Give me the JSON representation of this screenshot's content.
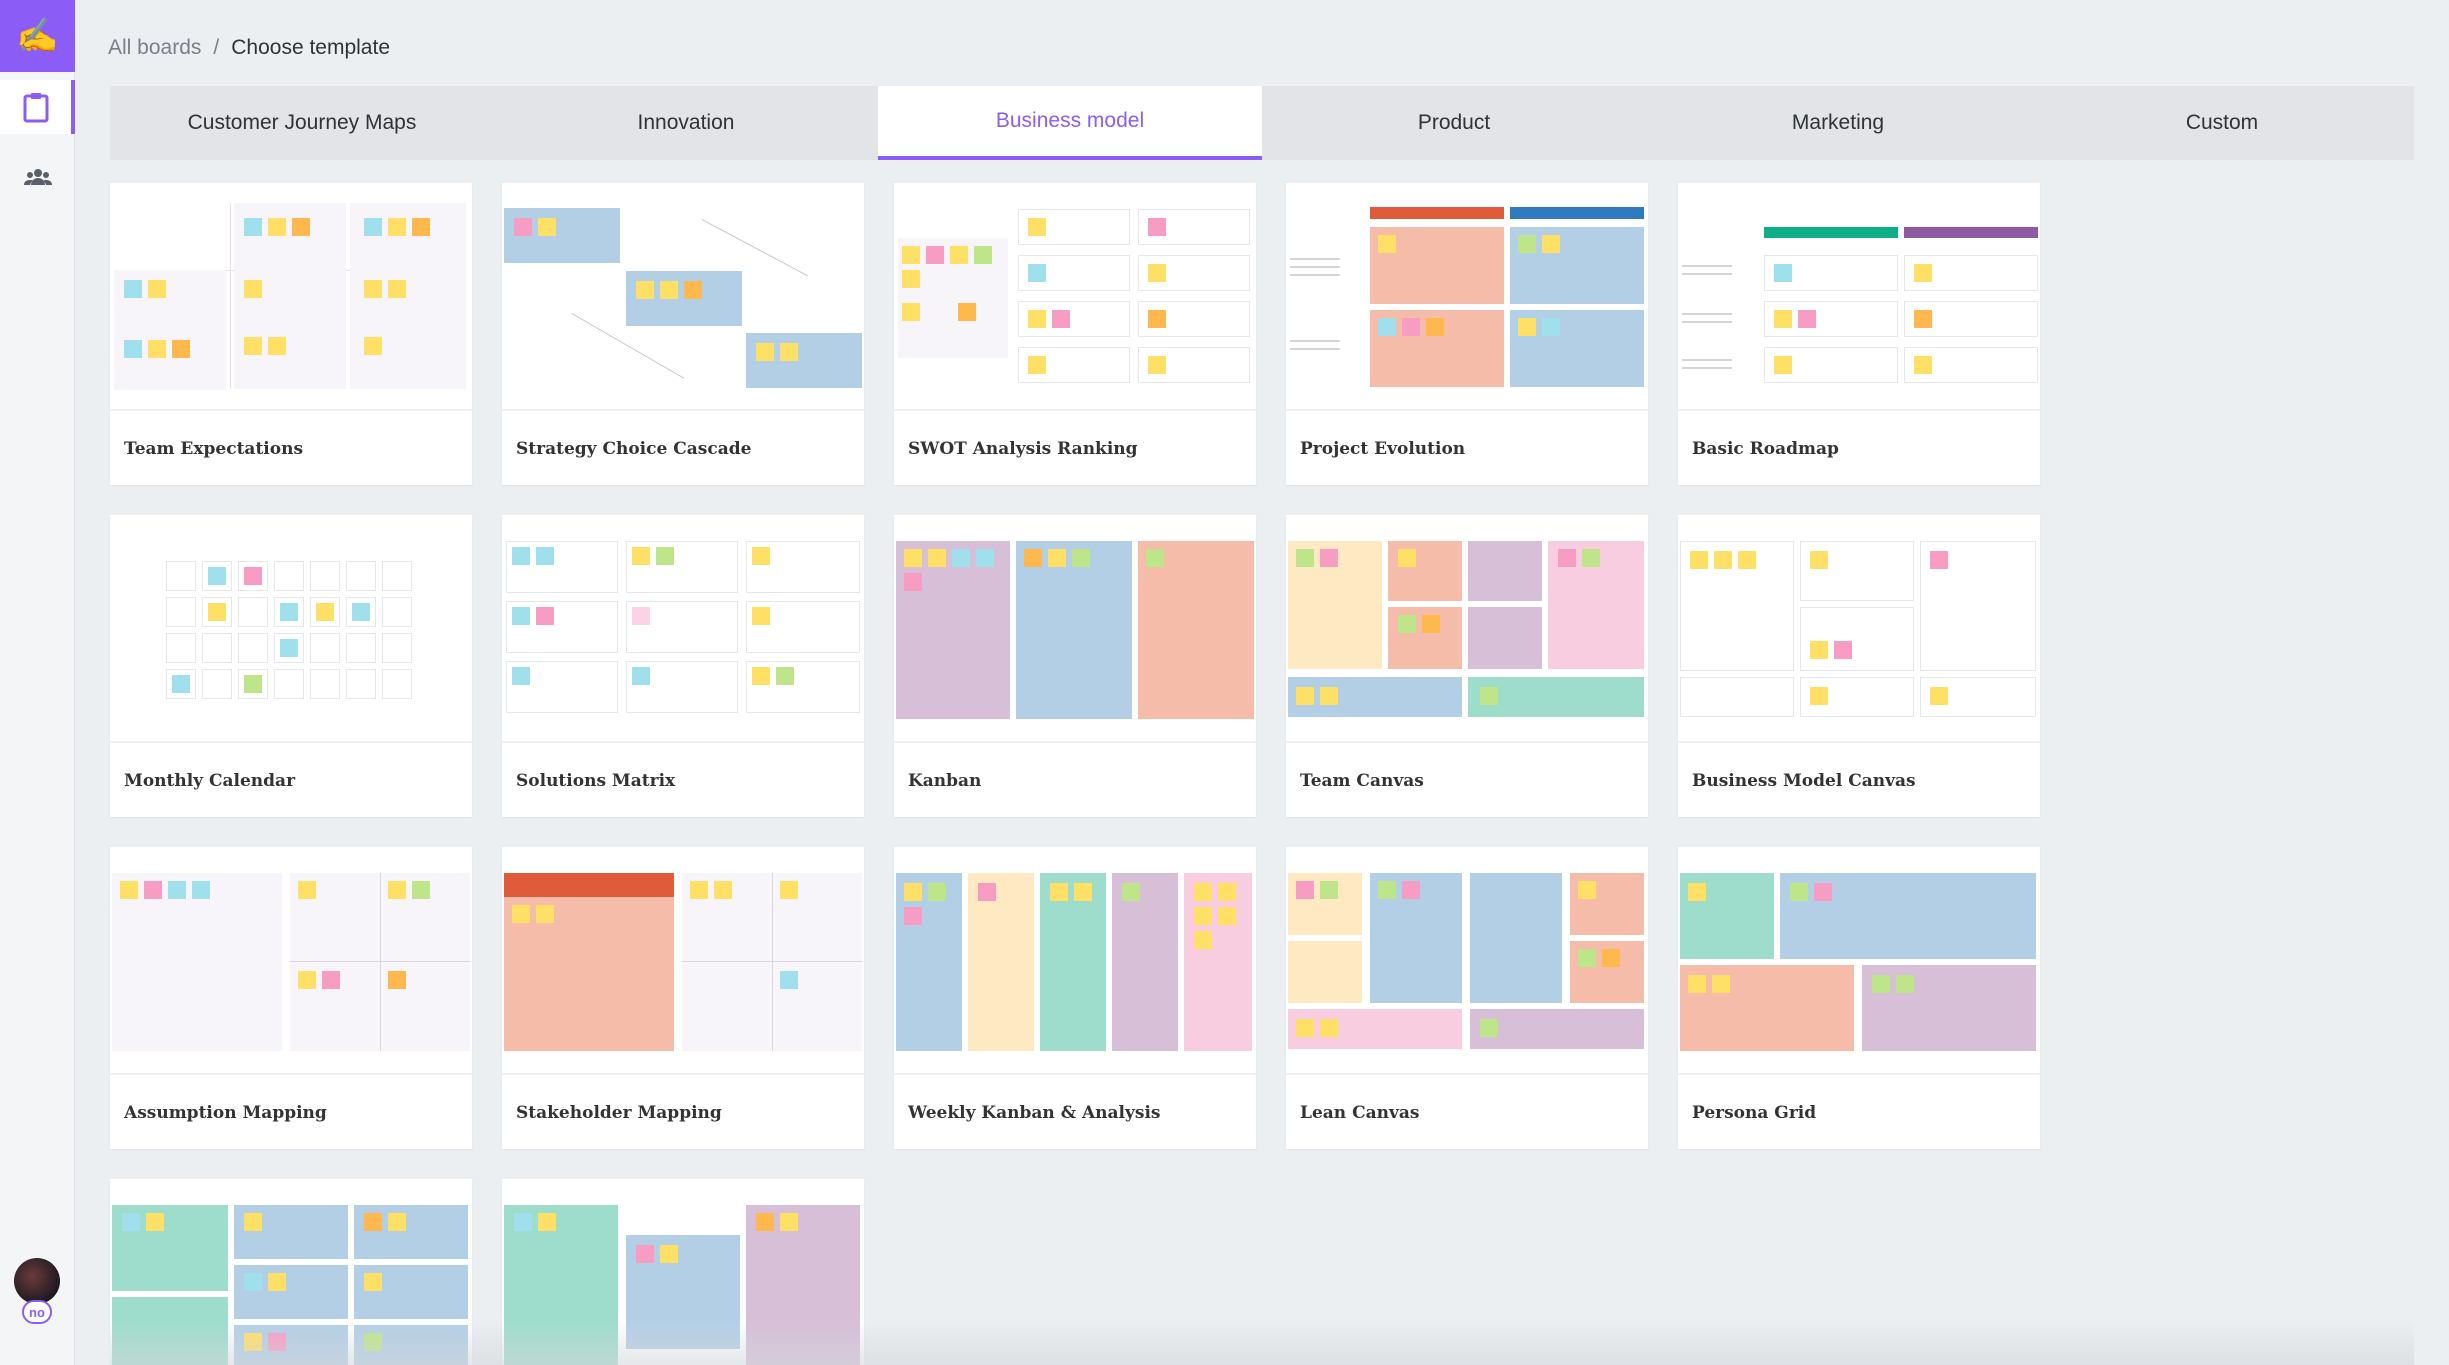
{
  "app": {
    "logo_glyph": "✍",
    "user_initials": "no"
  },
  "breadcrumb": {
    "root": "All boards",
    "separator": "/",
    "current": "Choose template"
  },
  "tabs": [
    {
      "label": "Customer Journey Maps",
      "active": false
    },
    {
      "label": "Innovation",
      "active": false
    },
    {
      "label": "Business model",
      "active": true
    },
    {
      "label": "Product",
      "active": false
    },
    {
      "label": "Marketing",
      "active": false
    },
    {
      "label": "Custom",
      "active": false
    }
  ],
  "templates": [
    "Team Expectations",
    "Strategy Choice Cascade",
    "SWOT Analysis Ranking",
    "Project Evolution",
    "Basic Roadmap",
    "Monthly Calendar",
    "Solutions Matrix",
    "Kanban",
    "Team Canvas",
    "Business Model Canvas",
    "Assumption Mapping",
    "Stakeholder Mapping",
    "Weekly Kanban & Analysis",
    "Lean Canvas",
    "Persona Grid"
  ],
  "colors": {
    "accent": "#8b5cf6",
    "bg": "#eceff2",
    "tab_bg": "#e2e4e7"
  }
}
